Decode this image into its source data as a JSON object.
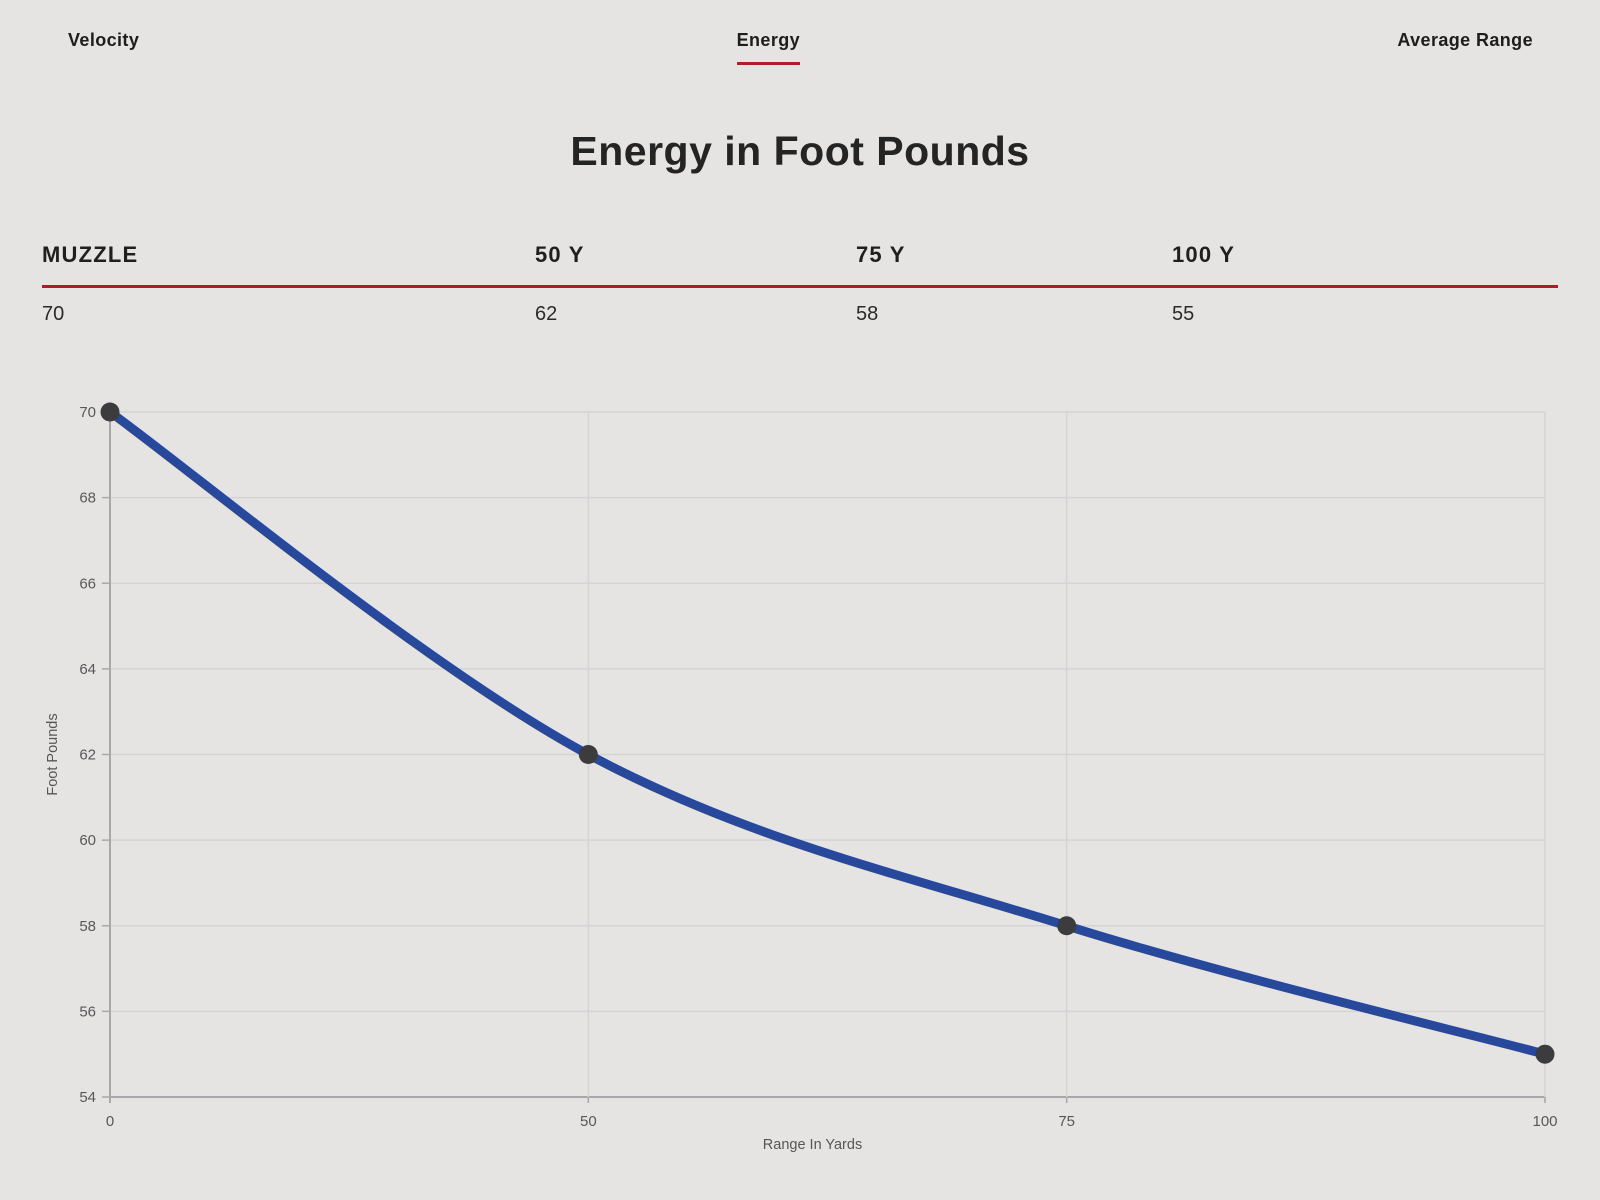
{
  "tabs": {
    "items": [
      {
        "label": "Velocity",
        "active": false
      },
      {
        "label": "Energy",
        "active": true
      },
      {
        "label": "Average Range",
        "active": false
      }
    ]
  },
  "title": "Energy in Foot Pounds",
  "table": {
    "headers": [
      "MUZZLE",
      "50 Y",
      "75 Y",
      "100 Y"
    ],
    "values": [
      "70",
      "62",
      "58",
      "55"
    ]
  },
  "chart_data": {
    "type": "line",
    "categories": [
      "0",
      "50",
      "75",
      "100"
    ],
    "values": [
      70,
      62,
      58,
      55
    ],
    "title": "Energy in Foot Pounds",
    "xlabel": "Range In Yards",
    "ylabel": "Foot Pounds",
    "ylim": [
      54,
      70
    ],
    "yticks": [
      54,
      56,
      58,
      60,
      62,
      64,
      66,
      68,
      70
    ],
    "x_axis_type": "category-equal-spacing",
    "grid": true,
    "legend": false,
    "smooth": true
  },
  "colors": {
    "background": "#e5e4e2",
    "accent_red": "#b01f24",
    "divider_red": "#a81e22",
    "line_blue": "#27489b",
    "marker_dark": "#3c3c3e",
    "gridline": "#d4d4d6",
    "axis_line": "#a8a8aa",
    "tick_text": "#58585a",
    "heading_text": "#1f1f1f"
  }
}
